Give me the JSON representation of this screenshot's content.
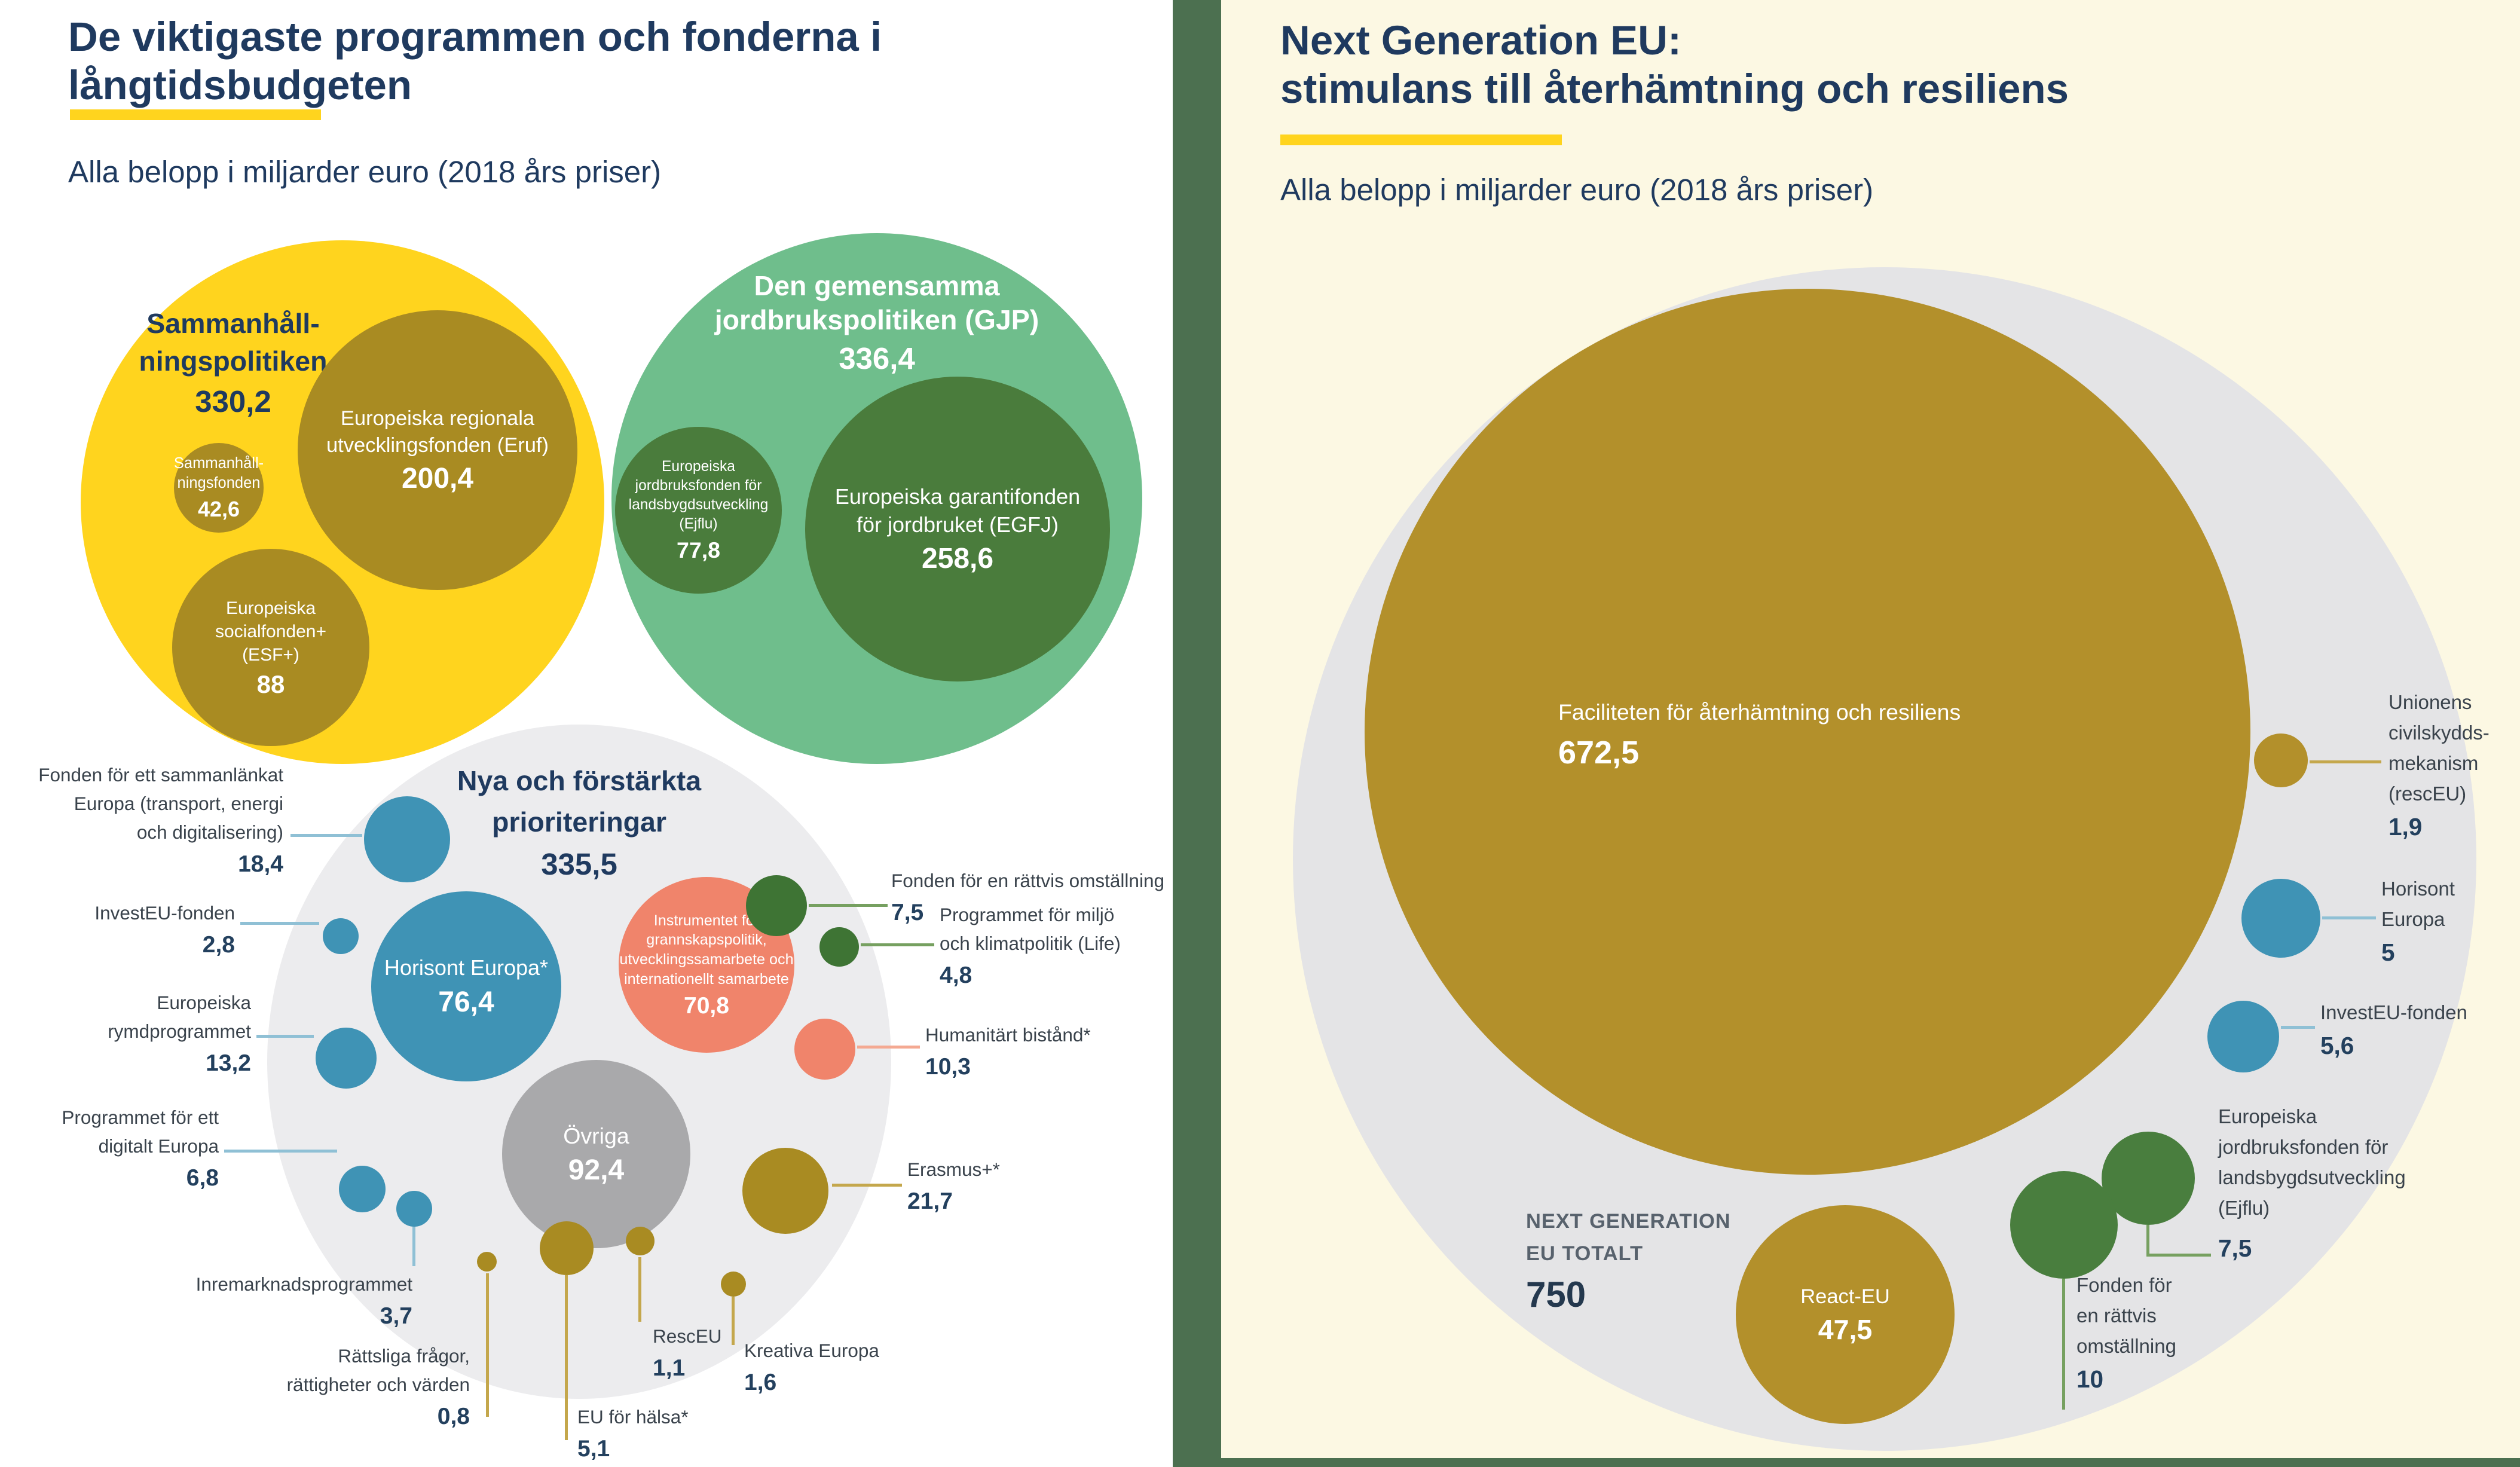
{
  "colors": {
    "yellow": "#FFD41E",
    "gold_left": "#A98B22",
    "gold_right": "#B3902B",
    "green_light": "#6FBE8C",
    "green_dark": "#4A7C3C",
    "green_deep": "#3E7434",
    "green_right": "#497E3E",
    "blue": "#3F93B5",
    "salmon": "#F0846B",
    "gray_bubble": "#ECECEE",
    "gray_mid": "#A9A9AB",
    "gray_right": "#E4E4E6",
    "cream": "#FCF8E3",
    "divider_green": "#4C7050",
    "navy": "#1F3A5F"
  },
  "left_panel": {
    "title_lines": [
      "De viktigaste programmen och fonderna i",
      "långtidsbudgeten"
    ],
    "subtitle": "Alla belopp i miljarder euro (2018 års priser)",
    "bubbles": [
      {
        "id": "cohesion",
        "color": "yellow",
        "text": "navy",
        "label_lines": [
          "Sammanhåll-",
          "ningspolitiken"
        ],
        "value": "330,2"
      },
      {
        "id": "cap",
        "color": "green_light",
        "text": "white",
        "label_lines": [
          "Den gemensamma",
          "jordbrukspolitiken (GJP)"
        ],
        "value": "336,4"
      },
      {
        "id": "new",
        "color": "gray_bubble",
        "text": "navy",
        "label_lines": [
          "Nya och förstärkta",
          "prioriteringar"
        ],
        "value": "335,5"
      },
      {
        "id": "eruf",
        "color": "gold_left",
        "text": "white",
        "label_lines": [
          "Europeiska regionala",
          "utvecklingsfonden (Eruf)"
        ],
        "value": "200,4"
      },
      {
        "id": "cfund",
        "color": "gold_left",
        "text": "white",
        "label_lines": [
          "Sammanhåll-",
          "ningsfonden"
        ],
        "value": "42,6"
      },
      {
        "id": "esf",
        "color": "gold_left",
        "text": "white",
        "label_lines": [
          "Europeiska",
          "socialfonden+",
          "(ESF+)"
        ],
        "value": "88"
      },
      {
        "id": "egfj",
        "color": "green_dark",
        "text": "white",
        "label_lines": [
          "Europeiska garantifonden",
          "för jordbruket (EGFJ)"
        ],
        "value": "258,6"
      },
      {
        "id": "ejflu",
        "color": "green_dark",
        "text": "white",
        "label_lines": [
          "Europeiska",
          "jordbruksfonden för",
          "landsbygdsutveckling",
          "(Ejflu)"
        ],
        "value": "77,8"
      },
      {
        "id": "horisont",
        "color": "blue",
        "text": "white",
        "label_lines": [
          "Horisont Europa*"
        ],
        "value": "76,4"
      },
      {
        "id": "ndici",
        "color": "salmon",
        "text": "white",
        "label_lines": [
          "Instrumentet för",
          "grannskapspolitik,",
          "utvecklingssamarbete och",
          "internationellt samarbete"
        ],
        "value": "70,8"
      },
      {
        "id": "ovriga",
        "color": "gray_mid",
        "text": "white",
        "label_lines": [
          "Övriga"
        ],
        "value": "92,4"
      },
      {
        "id": "cef",
        "color": "blue"
      },
      {
        "id": "investeu",
        "color": "blue"
      },
      {
        "id": "space",
        "color": "blue"
      },
      {
        "id": "digital",
        "color": "blue"
      },
      {
        "id": "market",
        "color": "blue"
      },
      {
        "id": "justice",
        "color": "gold_left"
      },
      {
        "id": "health",
        "color": "gold_left"
      },
      {
        "id": "resceu",
        "color": "gold_left"
      },
      {
        "id": "creative",
        "color": "gold_left"
      },
      {
        "id": "jtf",
        "color": "green_deep"
      },
      {
        "id": "life",
        "color": "green_deep"
      },
      {
        "id": "humanitarian",
        "color": "salmon"
      },
      {
        "id": "erasmus",
        "color": "gold_left"
      }
    ],
    "callouts": [
      {
        "id": "cef",
        "lines": [
          "Fonden för ett sammanlänkat",
          "Europa (transport, energi",
          "och digitalisering)"
        ],
        "value": "18,4"
      },
      {
        "id": "investeu",
        "lines": [
          "InvestEU-fonden"
        ],
        "value": "2,8"
      },
      {
        "id": "space",
        "lines": [
          "Europeiska",
          "rymdprogrammet"
        ],
        "value": "13,2"
      },
      {
        "id": "digital",
        "lines": [
          "Programmet för ett",
          "digitalt Europa"
        ],
        "value": "6,8"
      },
      {
        "id": "market",
        "lines": [
          "Inremarknadsprogrammet"
        ],
        "value": "3,7"
      },
      {
        "id": "justice",
        "lines": [
          "Rättsliga frågor,",
          "rättigheter och värden"
        ],
        "value": "0,8"
      },
      {
        "id": "health",
        "lines": [
          "EU för hälsa*"
        ],
        "value": "5,1"
      },
      {
        "id": "resceu",
        "lines": [
          "RescEU"
        ],
        "value": "1,1"
      },
      {
        "id": "creative",
        "lines": [
          "Kreativa Europa"
        ],
        "value": "1,6"
      },
      {
        "id": "jtf",
        "lines": [
          "Fonden för en rättvis omställning"
        ],
        "value": "7,5"
      },
      {
        "id": "life",
        "lines": [
          "Programmet för miljö",
          "och klimatpolitik (Life)"
        ],
        "value": "4,8"
      },
      {
        "id": "humanitarian",
        "lines": [
          "Humanitärt bistånd*"
        ],
        "value": "10,3"
      },
      {
        "id": "erasmus",
        "lines": [
          "Erasmus+*"
        ],
        "value": "21,7"
      }
    ]
  },
  "right_panel": {
    "title_lines": [
      "Next Generation EU:",
      "stimulans till återhämtning och resiliens"
    ],
    "subtitle": "Alla belopp i miljarder euro (2018 års priser)",
    "bubbles": [
      {
        "id": "ngeu",
        "color": "gray_right"
      },
      {
        "id": "rrf",
        "color": "gold_right",
        "text": "white",
        "label_lines": [
          "Faciliteten för återhämtning och resiliens"
        ],
        "value": "672,5"
      },
      {
        "id": "react",
        "color": "gold_right",
        "text": "white",
        "label_lines": [
          "React-EU"
        ],
        "value": "47,5"
      },
      {
        "id": "resceu-r",
        "color": "gold_right"
      },
      {
        "id": "horisont-r",
        "color": "blue"
      },
      {
        "id": "investeu-r",
        "color": "blue"
      },
      {
        "id": "ejflu-r",
        "color": "green_right"
      },
      {
        "id": "jtf-r",
        "color": "green_right"
      }
    ],
    "callouts": [
      {
        "id": "ngeu-total",
        "lines": [
          "NEXT GENERATION",
          "EU TOTALT"
        ],
        "value": "750"
      },
      {
        "id": "resceu-r",
        "lines": [
          "Unionens",
          "civilskydds-",
          "mekanism",
          "(rescEU)"
        ],
        "value": "1,9"
      },
      {
        "id": "horisont-r",
        "lines": [
          "Horisont",
          "Europa"
        ],
        "value": "5"
      },
      {
        "id": "investeu-r",
        "lines": [
          "InvestEU-fonden"
        ],
        "value": "5,6"
      },
      {
        "id": "ejflu-r",
        "lines": [
          "Europeiska",
          "jordbruksfonden för",
          "landsbygdsutveckling",
          "(Ejflu)"
        ],
        "value": "7,5"
      },
      {
        "id": "jtf-r",
        "lines": [
          "Fonden för",
          "en rättvis",
          "omställning"
        ],
        "value": "10"
      }
    ]
  },
  "chart_data": [
    {
      "type": "bubble",
      "title": "De viktigaste programmen och fonderna i långtidsbudgeten",
      "unit": "miljarder euro (2018 års priser)",
      "groups": [
        {
          "name": "Sammanhållningspolitiken",
          "value": 330.2,
          "children": [
            {
              "name": "Europeiska regionala utvecklingsfonden (Eruf)",
              "value": 200.4
            },
            {
              "name": "Europeiska socialfonden+ (ESF+)",
              "value": 88
            },
            {
              "name": "Sammanhållningsfonden",
              "value": 42.6
            }
          ]
        },
        {
          "name": "Den gemensamma jordbrukspolitiken (GJP)",
          "value": 336.4,
          "children": [
            {
              "name": "Europeiska garantifonden för jordbruket (EGFJ)",
              "value": 258.6
            },
            {
              "name": "Europeiska jordbruksfonden för landsbygdsutveckling (Ejflu)",
              "value": 77.8
            }
          ]
        },
        {
          "name": "Nya och förstärkta prioriteringar",
          "value": 335.5,
          "children": [
            {
              "name": "Övriga",
              "value": 92.4
            },
            {
              "name": "Horisont Europa*",
              "value": 76.4
            },
            {
              "name": "Instrumentet för grannskapspolitik, utvecklingssamarbete och internationellt samarbete",
              "value": 70.8
            },
            {
              "name": "Erasmus+*",
              "value": 21.7
            },
            {
              "name": "Fonden för ett sammanlänkat Europa (transport, energi och digitalisering)",
              "value": 18.4
            },
            {
              "name": "Europeiska rymdprogrammet",
              "value": 13.2
            },
            {
              "name": "Humanitärt bistånd*",
              "value": 10.3
            },
            {
              "name": "Fonden för en rättvis omställning",
              "value": 7.5
            },
            {
              "name": "Programmet för ett digitalt Europa",
              "value": 6.8
            },
            {
              "name": "EU för hälsa*",
              "value": 5.1
            },
            {
              "name": "Programmet för miljö och klimatpolitik (Life)",
              "value": 4.8
            },
            {
              "name": "Inremarknadsprogrammet",
              "value": 3.7
            },
            {
              "name": "InvestEU-fonden",
              "value": 2.8
            },
            {
              "name": "Kreativa Europa",
              "value": 1.6
            },
            {
              "name": "RescEU",
              "value": 1.1
            },
            {
              "name": "Rättsliga frågor, rättigheter och värden",
              "value": 0.8
            }
          ]
        }
      ]
    },
    {
      "type": "bubble",
      "title": "Next Generation EU: stimulans till återhämtning och resiliens",
      "unit": "miljarder euro (2018 års priser)",
      "total": {
        "name": "Next Generation EU totalt",
        "value": 750
      },
      "items": [
        {
          "name": "Faciliteten för återhämtning och resiliens",
          "value": 672.5
        },
        {
          "name": "React-EU",
          "value": 47.5
        },
        {
          "name": "Fonden för en rättvis omställning",
          "value": 10
        },
        {
          "name": "Europeiska jordbruksfonden för landsbygdsutveckling (Ejflu)",
          "value": 7.5
        },
        {
          "name": "InvestEU-fonden",
          "value": 5.6
        },
        {
          "name": "Horisont Europa",
          "value": 5
        },
        {
          "name": "Unionens civilskyddsmekanism (rescEU)",
          "value": 1.9
        }
      ]
    }
  ]
}
